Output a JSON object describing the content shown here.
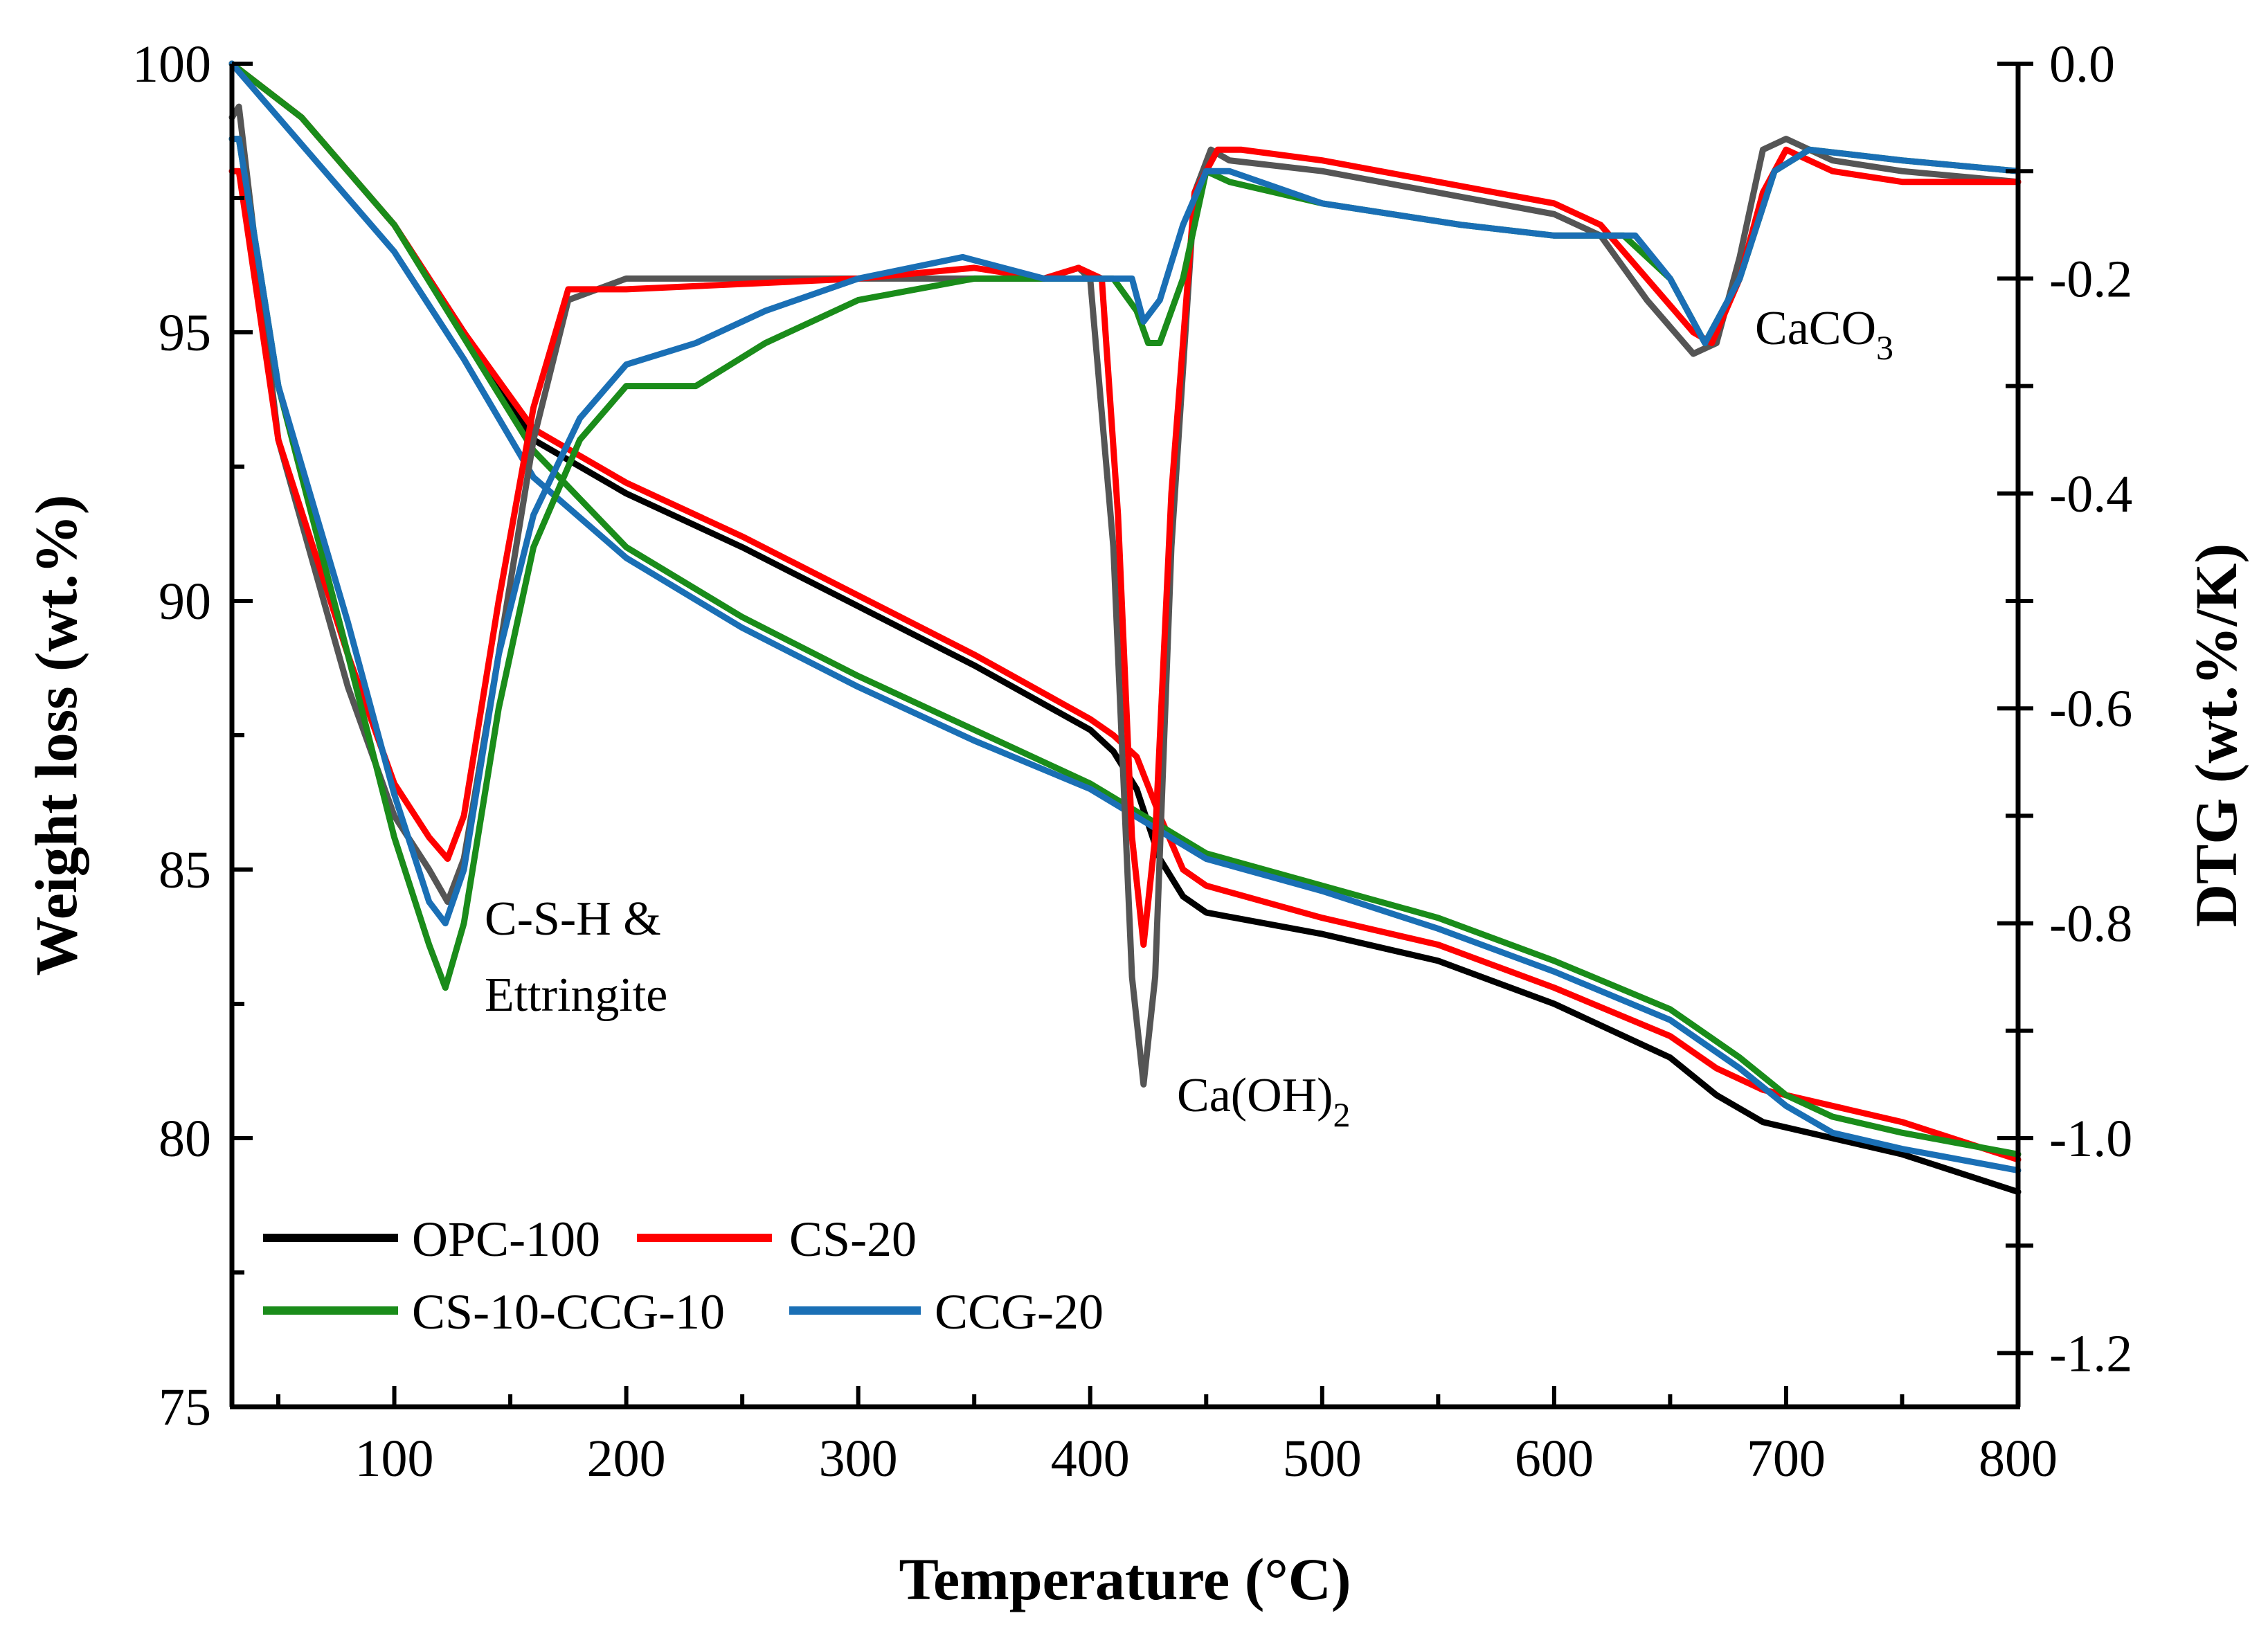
{
  "chart_data": {
    "type": "line",
    "xlabel": "Temperature (°C)",
    "ylabel_left": "Weight loss (wt.%)",
    "ylabel_right": "DTG (wt.%/K)",
    "xlim": [
      30,
      800
    ],
    "ylim_left": [
      75,
      100
    ],
    "ylim_right": [
      -1.25,
      0.0
    ],
    "x_ticks": [
      100,
      200,
      300,
      400,
      500,
      600,
      700,
      800
    ],
    "y_ticks_left": [
      75,
      80,
      85,
      90,
      95,
      100
    ],
    "y_ticks_right": [
      -1.2,
      -1.0,
      -0.8,
      -0.6,
      -0.4,
      -0.2,
      0.0
    ],
    "y_tick_labels_right": [
      "-1.2",
      "-1.0",
      "-0.8",
      "-0.6",
      "-0.4",
      "-0.2",
      "0.0"
    ],
    "legend": [
      "OPC-100",
      "CS-20",
      "CS-10-CCG-10",
      "CCG-20"
    ],
    "colors": {
      "OPC-100": "#000000",
      "OPC-100-dtg": "#555555",
      "CS-20": "#ff0000",
      "CS-10-CCG-10": "#1a8c1a",
      "CCG-20": "#1a6fb5"
    },
    "annotations": {
      "csh_line1": "C-S-H &",
      "csh_line2": "Ettringite",
      "caoh_main": "Ca(OH)",
      "caoh_sub": "2",
      "caco_main": "CaCO",
      "caco_sub": "3"
    },
    "tg_series": [
      {
        "name": "OPC-100",
        "x": [
          30,
          60,
          100,
          130,
          160,
          200,
          250,
          300,
          350,
          400,
          410,
          420,
          430,
          440,
          450,
          500,
          550,
          600,
          650,
          670,
          690,
          700,
          750,
          800
        ],
        "y": [
          100,
          99,
          97,
          95,
          93,
          92,
          91,
          89.9,
          88.8,
          87.6,
          87.2,
          86.5,
          85.2,
          84.5,
          84.2,
          83.8,
          83.3,
          82.5,
          81.5,
          80.8,
          80.3,
          80.2,
          79.7,
          79.0
        ]
      },
      {
        "name": "CS-20",
        "x": [
          30,
          60,
          100,
          130,
          160,
          200,
          250,
          300,
          350,
          400,
          410,
          420,
          430,
          440,
          450,
          500,
          550,
          600,
          650,
          670,
          690,
          700,
          750,
          800
        ],
        "y": [
          100,
          99,
          97,
          95,
          93.2,
          92.2,
          91.2,
          90.1,
          89,
          87.8,
          87.5,
          87.1,
          86,
          85,
          84.7,
          84.1,
          83.6,
          82.8,
          81.9,
          81.3,
          80.9,
          80.8,
          80.3,
          79.6
        ]
      },
      {
        "name": "CS-10-CCG-10",
        "x": [
          30,
          60,
          100,
          130,
          160,
          200,
          250,
          300,
          350,
          400,
          450,
          500,
          550,
          600,
          650,
          680,
          700,
          720,
          750,
          800
        ],
        "y": [
          100,
          99,
          97,
          94.9,
          92.8,
          91,
          89.7,
          88.6,
          87.6,
          86.6,
          85.3,
          84.7,
          84.1,
          83.3,
          82.4,
          81.5,
          80.8,
          80.4,
          80.1,
          79.7
        ]
      },
      {
        "name": "CCG-20",
        "x": [
          30,
          60,
          100,
          130,
          160,
          200,
          250,
          300,
          350,
          400,
          450,
          500,
          550,
          600,
          650,
          680,
          700,
          720,
          750,
          800
        ],
        "y": [
          100,
          98.5,
          96.5,
          94.5,
          92.3,
          90.8,
          89.5,
          88.4,
          87.4,
          86.5,
          85.2,
          84.6,
          83.9,
          83.1,
          82.2,
          81.3,
          80.6,
          80.1,
          79.8,
          79.4
        ]
      }
    ],
    "dtg_series": [
      {
        "name": "OPC-100",
        "x": [
          30,
          33,
          50,
          80,
          100,
          115,
          123,
          130,
          145,
          160,
          175,
          200,
          300,
          350,
          380,
          395,
          400,
          410,
          418,
          423,
          428,
          435,
          445,
          452,
          460,
          500,
          600,
          620,
          640,
          660,
          670,
          680,
          690,
          700,
          720,
          750,
          800
        ],
        "y": [
          -0.05,
          -0.04,
          -0.35,
          -0.58,
          -0.7,
          -0.75,
          -0.78,
          -0.74,
          -0.55,
          -0.35,
          -0.22,
          -0.2,
          -0.2,
          -0.2,
          -0.2,
          -0.19,
          -0.2,
          -0.45,
          -0.85,
          -0.95,
          -0.85,
          -0.45,
          -0.12,
          -0.08,
          -0.09,
          -0.1,
          -0.14,
          -0.16,
          -0.22,
          -0.27,
          -0.26,
          -0.18,
          -0.08,
          -0.07,
          -0.09,
          -0.1,
          -0.11
        ]
      },
      {
        "name": "CS-20",
        "x": [
          30,
          33,
          50,
          80,
          100,
          115,
          123,
          130,
          145,
          160,
          175,
          200,
          300,
          350,
          380,
          395,
          405,
          412,
          418,
          423,
          428,
          435,
          445,
          455,
          465,
          500,
          600,
          620,
          640,
          660,
          668,
          680,
          690,
          700,
          720,
          750,
          800
        ],
        "y": [
          -0.1,
          -0.1,
          -0.35,
          -0.55,
          -0.67,
          -0.72,
          -0.74,
          -0.7,
          -0.5,
          -0.32,
          -0.21,
          -0.21,
          -0.2,
          -0.19,
          -0.2,
          -0.19,
          -0.2,
          -0.42,
          -0.72,
          -0.82,
          -0.72,
          -0.4,
          -0.12,
          -0.08,
          -0.08,
          -0.09,
          -0.13,
          -0.15,
          -0.2,
          -0.25,
          -0.26,
          -0.2,
          -0.12,
          -0.08,
          -0.1,
          -0.11,
          -0.11
        ]
      },
      {
        "name": "CS-10-CCG-10",
        "x": [
          30,
          33,
          50,
          80,
          100,
          115,
          122,
          130,
          145,
          160,
          180,
          200,
          230,
          260,
          300,
          350,
          380,
          400,
          410,
          420,
          425,
          430,
          440,
          450,
          460,
          500,
          560,
          600,
          630,
          650,
          665,
          680,
          695,
          710,
          750,
          800
        ],
        "y": [
          -0.07,
          -0.07,
          -0.3,
          -0.55,
          -0.72,
          -0.82,
          -0.86,
          -0.8,
          -0.6,
          -0.45,
          -0.35,
          -0.3,
          -0.3,
          -0.26,
          -0.22,
          -0.2,
          -0.2,
          -0.2,
          -0.2,
          -0.23,
          -0.26,
          -0.26,
          -0.2,
          -0.1,
          -0.11,
          -0.13,
          -0.15,
          -0.16,
          -0.16,
          -0.2,
          -0.26,
          -0.2,
          -0.1,
          -0.08,
          -0.09,
          -0.1
        ]
      },
      {
        "name": "CCG-20",
        "x": [
          30,
          33,
          50,
          80,
          100,
          115,
          122,
          130,
          145,
          160,
          180,
          200,
          230,
          260,
          300,
          345,
          380,
          400,
          410,
          418,
          423,
          430,
          440,
          450,
          460,
          500,
          560,
          600,
          635,
          650,
          665,
          680,
          695,
          710,
          750,
          800
        ],
        "y": [
          -0.07,
          -0.07,
          -0.3,
          -0.52,
          -0.68,
          -0.78,
          -0.8,
          -0.75,
          -0.55,
          -0.42,
          -0.33,
          -0.28,
          -0.26,
          -0.23,
          -0.2,
          -0.18,
          -0.2,
          -0.2,
          -0.2,
          -0.2,
          -0.24,
          -0.22,
          -0.15,
          -0.1,
          -0.1,
          -0.13,
          -0.15,
          -0.16,
          -0.16,
          -0.2,
          -0.26,
          -0.2,
          -0.1,
          -0.08,
          -0.09,
          -0.1
        ]
      }
    ]
  }
}
